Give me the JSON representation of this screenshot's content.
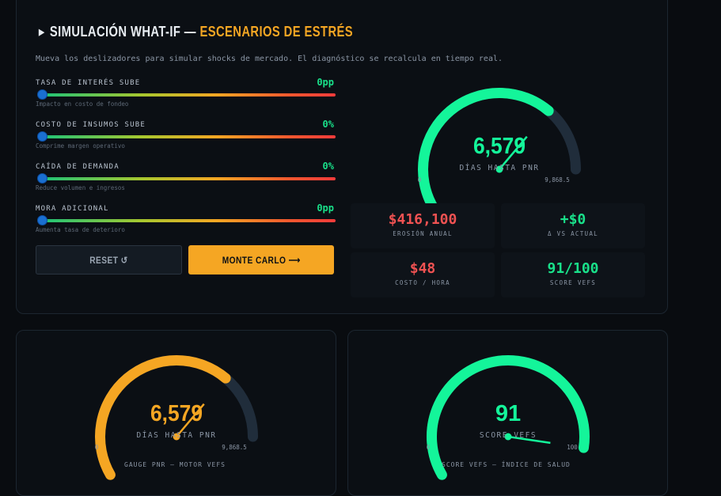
{
  "section": {
    "title_prefix": "SIMULACIÓN WHAT-IF —",
    "title_accent": "ESCENARIOS DE ESTRÉS",
    "subtitle": "Mueva los deslizadores para simular shocks de mercado. El diagnóstico se recalcula en tiempo real."
  },
  "sliders": [
    {
      "label": "TASA DE INTERÉS SUBE",
      "value": "0pp",
      "hint": "Impacto en costo de fondeo",
      "position": 0
    },
    {
      "label": "COSTO DE INSUMOS SUBE",
      "value": "0%",
      "hint": "Comprime margen operativo",
      "position": 0
    },
    {
      "label": "CAÍDA DE DEMANDA",
      "value": "0%",
      "hint": "Reduce volumen e ingresos",
      "position": 0
    },
    {
      "label": "MORA ADICIONAL",
      "value": "0pp",
      "hint": "Aumenta tasa de deterioro",
      "position": 0
    }
  ],
  "buttons": {
    "reset": "RESET ↺",
    "monte_carlo": "MONTE CARLO ⟶"
  },
  "main_gauge": {
    "value_text": "6,579",
    "caption": "DÍAS HASTA PNR",
    "min_label": "0",
    "max_label": "9,868.5",
    "fraction": 0.667,
    "color": "#14f59a"
  },
  "metrics": [
    {
      "value": "$416,100",
      "label": "EROSIÓN ANUAL",
      "color": "red"
    },
    {
      "value": "+$0",
      "label": "Δ VS ACTUAL",
      "color": "green"
    },
    {
      "value": "$48",
      "label": "COSTO / HORA",
      "color": "red"
    },
    {
      "value": "91/100",
      "label": "SCORE VEFS",
      "color": "green"
    }
  ],
  "pnr_gauge": {
    "value_text": "6,579",
    "caption": "DÍAS HASTA PNR",
    "min_label": "0",
    "max_label": "9,868.5",
    "fraction": 0.667,
    "color": "#f5a623",
    "footer": "GAUGE PNR — MOTOR VEFS"
  },
  "score_gauge": {
    "value_text": "91",
    "caption": "SCORE VEFS",
    "min_label": "0",
    "max_label": "100",
    "fraction": 0.91,
    "color": "#14f59a",
    "footer": "SCORE VEFS — ÍNDICE DE SALUD"
  }
}
